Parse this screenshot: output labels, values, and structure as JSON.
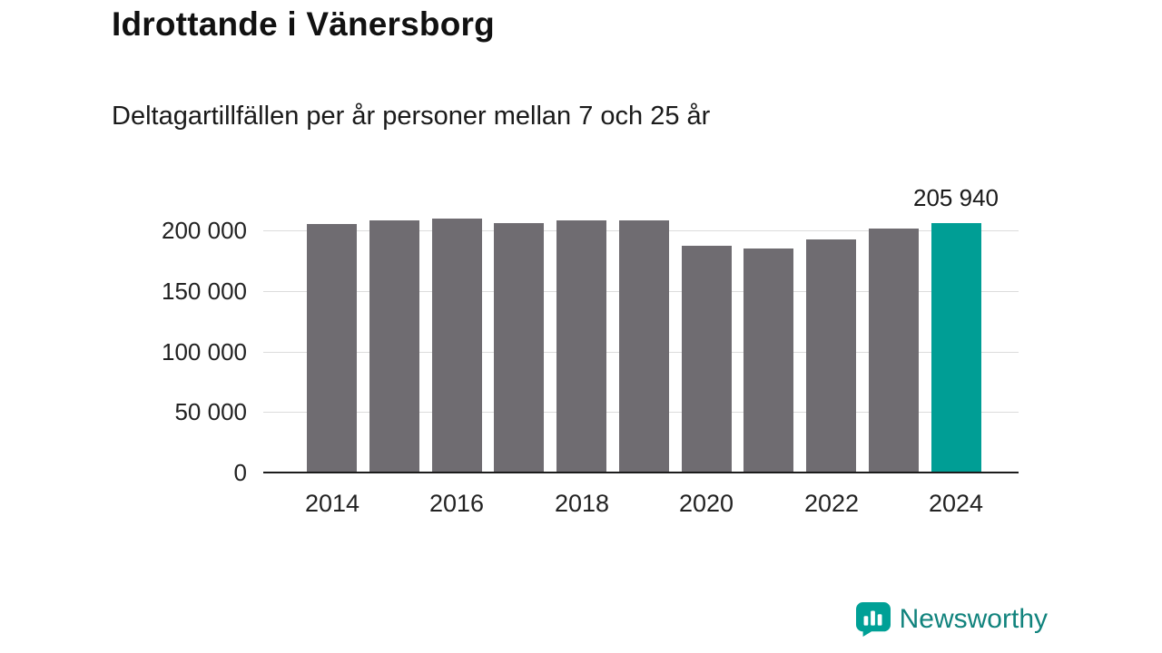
{
  "header": {
    "title": "Idrottande i Vänersborg",
    "subtitle": "Deltagartillfällen per år personer mellan 7 och 25 år"
  },
  "colors": {
    "bar": "#6f6c71",
    "highlight": "#009e95",
    "grid": "#dcdcdc",
    "axis": "#1c1c1c",
    "text": "#1a1a1a",
    "brand_icon": "#00a096",
    "brand_text": "#11837d"
  },
  "chart_data": {
    "type": "bar",
    "title": "Idrottande i Vänersborg",
    "subtitle": "Deltagartillfällen per år personer mellan 7 och 25 år",
    "x": [
      2014,
      2015,
      2016,
      2017,
      2018,
      2019,
      2020,
      2021,
      2022,
      2023,
      2024
    ],
    "values": [
      205000,
      208000,
      209500,
      206000,
      208500,
      208000,
      187000,
      185000,
      192500,
      201500,
      205940
    ],
    "highlight_index": 10,
    "ylim": [
      0,
      217000
    ],
    "ytick_values": [
      0,
      50000,
      100000,
      150000,
      200000
    ],
    "ytick_labels": [
      "0",
      "50 000",
      "100 000",
      "150 000",
      "200 000"
    ],
    "xtick_values": [
      2014,
      2016,
      2018,
      2020,
      2022,
      2024
    ],
    "xtick_labels": [
      "2014",
      "2016",
      "2018",
      "2020",
      "2022",
      "2024"
    ],
    "grid": true,
    "legend": null,
    "annotation": {
      "text": "205 940",
      "x": 2024
    }
  },
  "branding": {
    "name": "Newsworthy",
    "logo_icon": "bar-chart-bubble-icon"
  }
}
